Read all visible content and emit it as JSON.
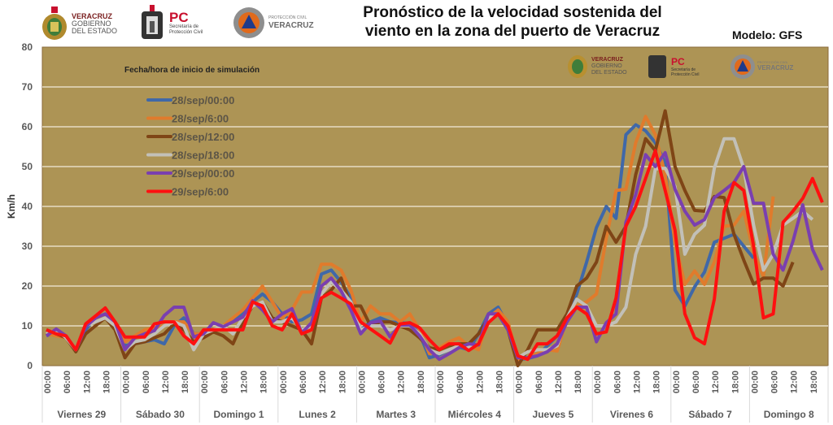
{
  "header": {
    "title_line1": "Pronóstico de la velocidad sostenida del",
    "title_line2": "viento en la zona del puerto de Veracruz",
    "model": "Modelo: GFS",
    "logos": [
      {
        "name": "veracruz-gobierno",
        "text": [
          "VERACRUZ",
          "GOBIERNO",
          "DEL ESTADO"
        ]
      },
      {
        "name": "proteccion-civil-pc",
        "text": [
          "PC",
          "Secretaría de",
          "Protección Civil"
        ]
      },
      {
        "name": "proteccion-civil-veracruz",
        "text": [
          "PROTECCIÓN CIVIL",
          "VERACRUZ"
        ]
      }
    ]
  },
  "colors": {
    "plot_bg": "#ad9455",
    "grid": "#f2eadb",
    "axis_text": "#595959"
  },
  "chart_data": {
    "type": "line",
    "title": "Pronóstico de la velocidad sostenida del viento en la zona del puerto de Veracruz",
    "ylabel": "Km/h",
    "ylim": [
      0,
      80
    ],
    "yticks": [
      0,
      10,
      20,
      30,
      40,
      50,
      60,
      70,
      80
    ],
    "grid": true,
    "legend_title": "Fecha/hora de inicio de simulación",
    "legend_placement": "top-left",
    "days": [
      "Viernes 29",
      "Sábado 30",
      "Domingo 1",
      "Lunes 2",
      "Martes 3",
      "Miércoles 4",
      "Jueves 5",
      "Virenes 6",
      "Sábado 7",
      "Domingo 8"
    ],
    "hour_ticks": [
      "00:00",
      "06:00",
      "12:00",
      "18:00"
    ],
    "time_step_hours": 3,
    "series": [
      {
        "name": "28/sep/00:00",
        "color": "#4068a8",
        "values": [
          7.5,
          8.5,
          7,
          4,
          9,
          12,
          13,
          10,
          5,
          5.5,
          6,
          6.5,
          5.5,
          10,
          12,
          8,
          8,
          9,
          10,
          11,
          13,
          16,
          18,
          16,
          13,
          11,
          11.5,
          13,
          23,
          24,
          21,
          17,
          9,
          11,
          12,
          11,
          10.8,
          10.6,
          8,
          2,
          2.7,
          4,
          4.7,
          4,
          8,
          13,
          14.7,
          10,
          1.5,
          1.8,
          2.5,
          5,
          7.5,
          12,
          18,
          26,
          34.7,
          40,
          37,
          58,
          60.5,
          59,
          56,
          51,
          19,
          15,
          19.8,
          23.5,
          31,
          32,
          33,
          30,
          27,
          null,
          null,
          null,
          null,
          null,
          null,
          null
        ]
      },
      {
        "name": "28/sep/6:00",
        "color": "#e07b2c",
        "values": [
          8,
          7.5,
          7,
          4,
          10,
          12,
          13,
          10,
          6,
          7.5,
          9,
          9.5,
          10,
          11,
          11,
          8,
          8,
          9,
          10,
          12,
          14,
          17,
          20,
          16,
          12,
          14,
          18.5,
          18.5,
          25.5,
          25.5,
          24,
          19,
          11,
          15,
          13,
          13,
          11,
          13,
          9,
          3,
          4.5,
          6,
          7,
          5,
          4,
          12,
          14,
          11,
          1.5,
          2,
          3,
          4,
          3.7,
          12,
          15,
          16,
          18,
          32,
          44,
          44.3,
          56,
          62.6,
          58,
          48,
          31,
          20.4,
          23.8,
          20.4,
          26,
          35,
          35.3,
          38.8,
          28.5,
          22.4,
          42.5,
          null,
          null,
          null,
          null,
          null
        ]
      },
      {
        "name": "28/sep/12:00",
        "color": "#7f4516",
        "values": [
          9,
          8,
          7,
          3.5,
          8,
          10,
          12,
          9,
          2,
          5.5,
          6,
          7,
          8,
          10.5,
          9,
          6,
          7,
          8.5,
          7.5,
          5.5,
          11,
          15,
          16,
          12,
          11,
          10,
          9,
          5.5,
          17,
          19,
          22,
          15,
          15,
          10,
          11,
          11,
          10,
          9,
          7,
          4.5,
          4,
          5,
          5.5,
          5.5,
          8,
          12,
          13,
          9,
          0,
          4,
          9,
          9,
          9,
          13,
          20,
          22,
          26,
          35,
          31,
          35,
          48,
          57,
          54,
          64,
          50,
          44,
          39,
          38.8,
          42.5,
          42.2,
          33,
          26.5,
          20.5,
          22,
          22,
          20,
          26,
          null,
          null,
          null
        ]
      },
      {
        "name": "28/sep/18:00",
        "color": "#c2c0b8",
        "values": [
          8,
          9,
          7,
          4,
          10,
          11,
          12,
          10,
          4,
          6,
          6.5,
          8,
          10,
          11,
          10,
          4,
          8,
          9,
          10,
          8,
          12,
          15,
          16,
          11,
          11,
          12,
          9,
          10,
          18,
          21,
          19,
          16,
          9,
          10,
          10,
          9,
          10,
          10,
          8,
          4,
          3,
          4,
          5,
          4.5,
          5.5,
          12,
          13,
          10,
          2,
          3.5,
          4,
          4,
          5,
          12,
          16.7,
          15,
          10,
          10,
          11,
          14.7,
          28,
          35,
          49.4,
          49.6,
          45,
          28,
          33,
          35.3,
          49.6,
          57,
          57,
          49.6,
          35.3,
          24,
          28,
          35.3,
          37,
          38.8,
          36.7,
          null
        ]
      },
      {
        "name": "29/sep/00:00",
        "color": "#7a3fb0",
        "values": [
          7.5,
          9.2,
          7.5,
          4,
          9.8,
          12,
          13,
          11,
          4,
          7,
          8,
          8.8,
          12.6,
          14.7,
          14.7,
          7.2,
          8,
          10.8,
          9.8,
          11,
          12.2,
          16.3,
          14,
          11,
          13,
          14.3,
          8.2,
          10.8,
          20,
          22,
          18.8,
          14,
          8,
          10.8,
          11.2,
          7.2,
          10.2,
          10.2,
          7.5,
          4,
          1.6,
          3,
          4.5,
          5.5,
          5.2,
          13,
          13,
          9,
          2,
          2,
          2.5,
          3.5,
          5.5,
          11,
          14.7,
          14.7,
          6,
          10.8,
          13,
          36,
          43,
          53,
          50,
          53.5,
          44.3,
          38.8,
          35.3,
          36.7,
          42.2,
          44,
          46,
          50,
          40.8,
          40.8,
          28,
          24,
          31.2,
          40.4,
          29.2,
          24
        ]
      },
      {
        "name": "29/sep/6:00",
        "color": "#ff1010",
        "values": [
          9,
          8,
          7.5,
          4,
          10.5,
          12.5,
          14.5,
          11,
          7.2,
          7.2,
          7.2,
          10.5,
          11,
          11,
          7.5,
          5.5,
          9,
          9,
          9,
          9,
          9,
          16,
          15,
          10,
          9,
          13,
          8,
          9,
          17,
          18.4,
          17,
          15.5,
          11,
          9.2,
          7.5,
          5.7,
          10.5,
          10.8,
          9.5,
          6.5,
          4,
          5.5,
          5.5,
          3.8,
          5.5,
          10.8,
          13,
          10,
          2.5,
          1.6,
          5.5,
          5.5,
          7.5,
          12,
          14.7,
          13,
          8,
          8.5,
          17,
          35,
          40,
          47,
          54,
          44,
          34,
          13,
          7,
          5.5,
          16.7,
          38.8,
          46,
          44,
          30,
          12,
          13,
          36,
          38.8,
          42,
          47,
          41
        ]
      }
    ]
  }
}
